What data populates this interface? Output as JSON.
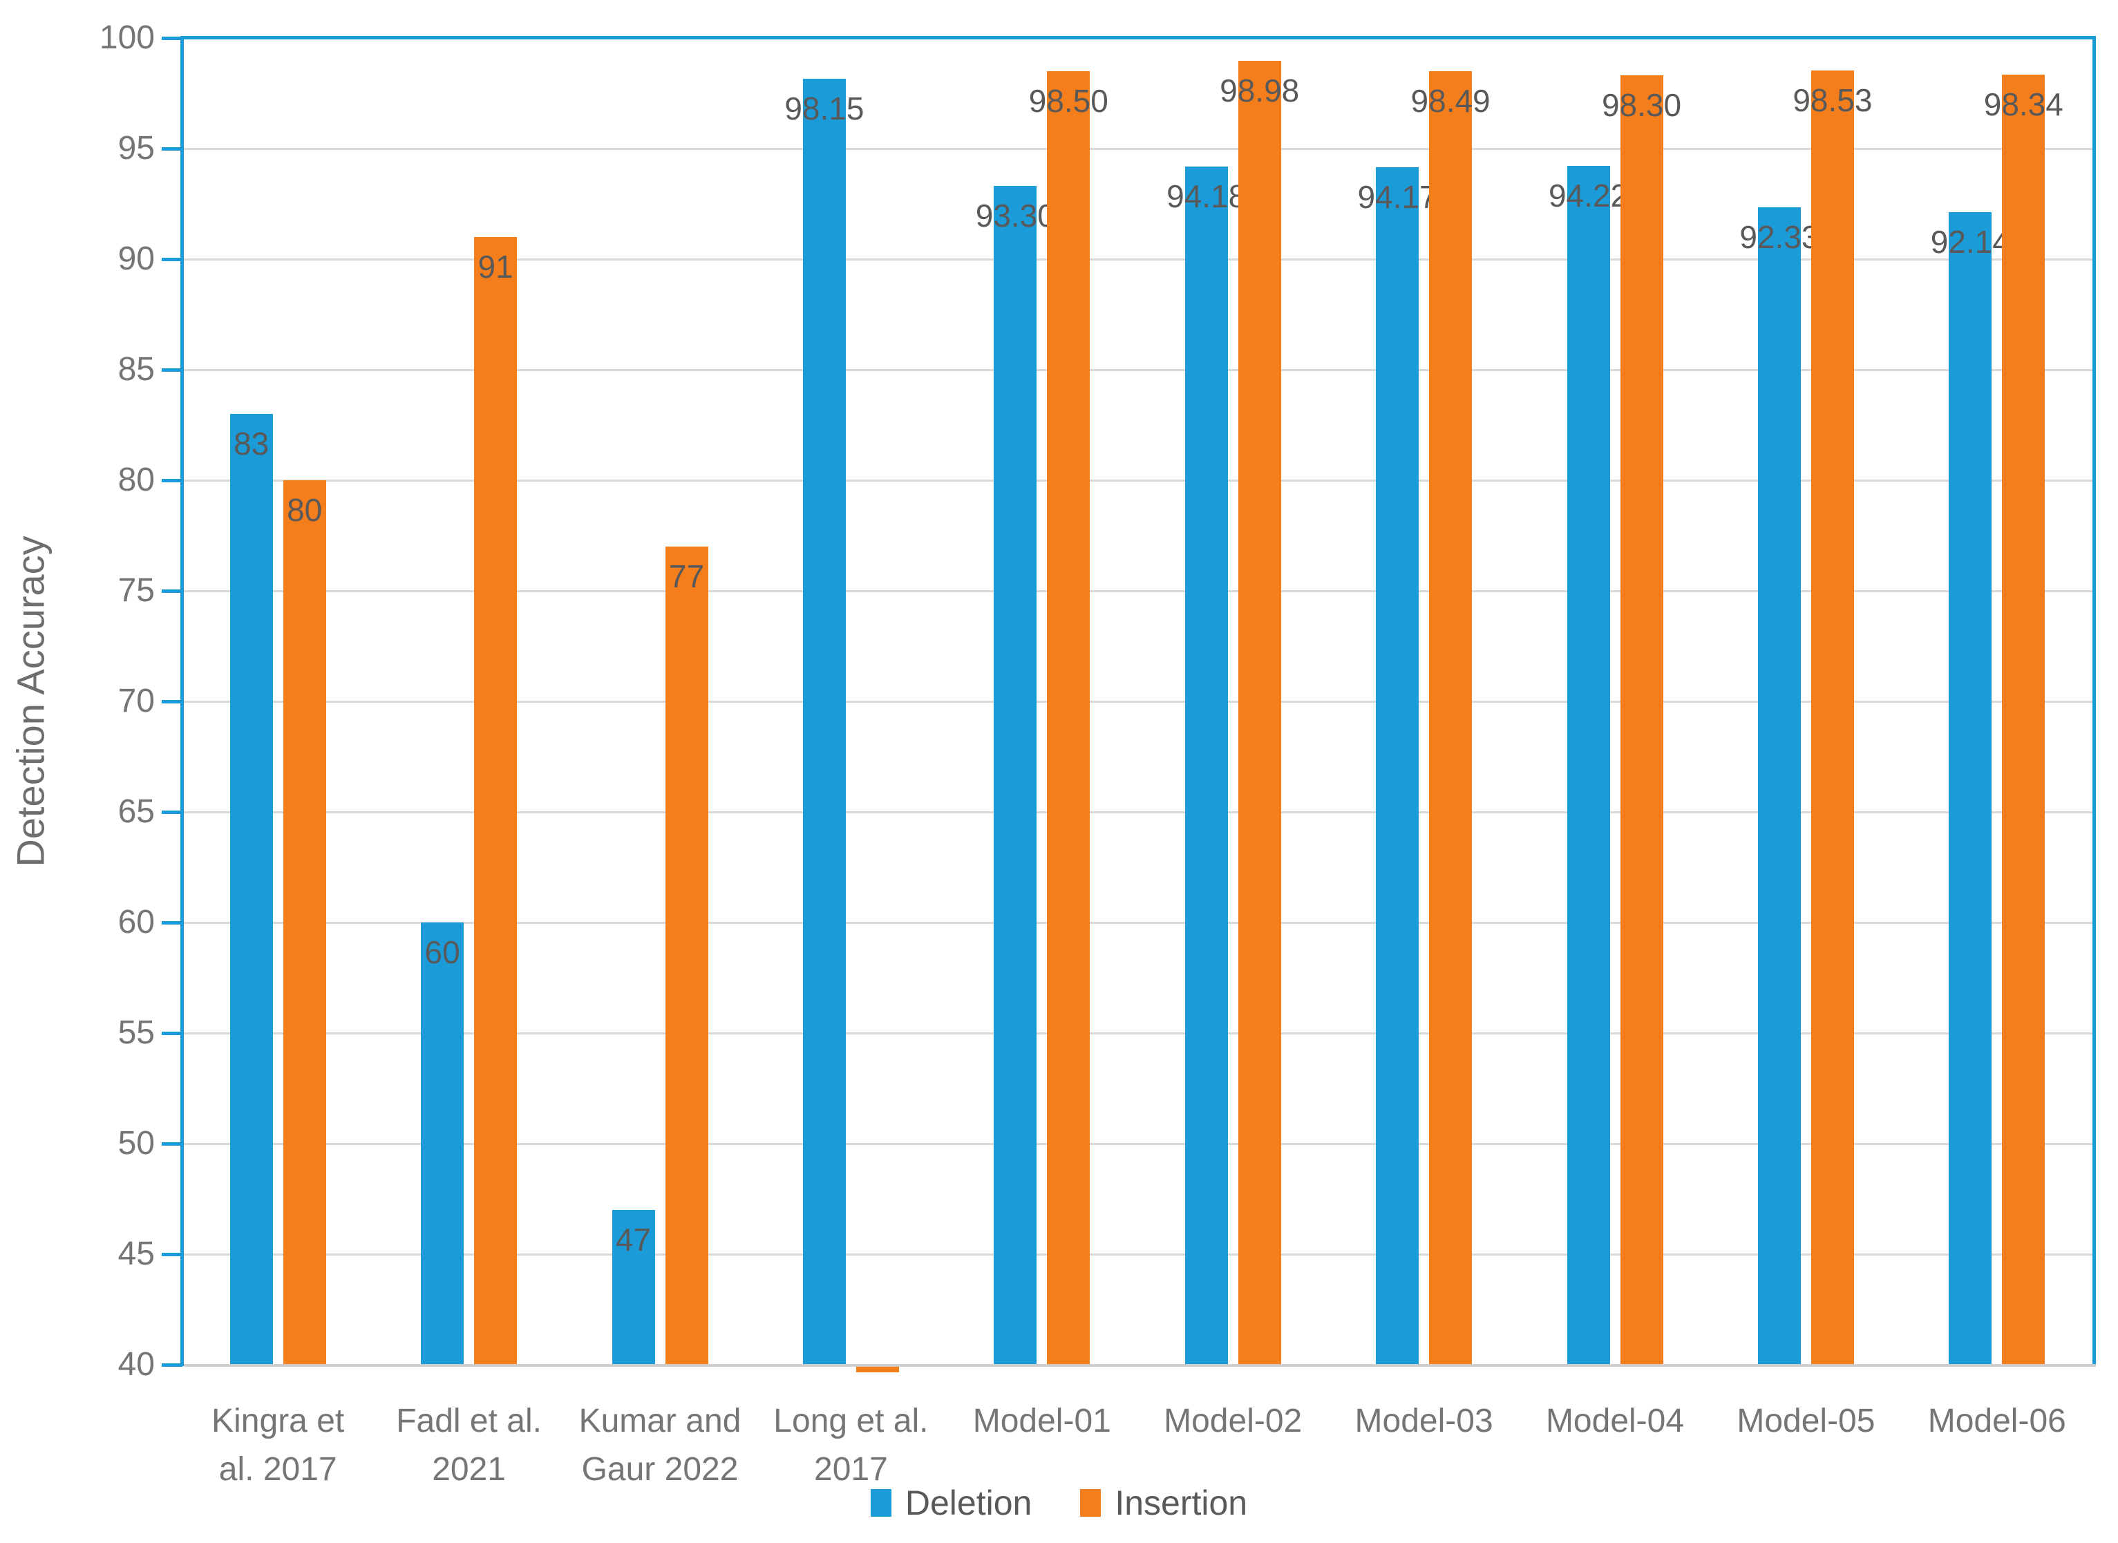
{
  "chart_data": {
    "type": "bar",
    "title": "",
    "xlabel": "",
    "ylabel": "Detection Accuracy",
    "ylim": [
      40,
      100
    ],
    "ytick_step": 5,
    "yticks": [
      100,
      95,
      90,
      85,
      80,
      75,
      70,
      65,
      60,
      55,
      50,
      45,
      40
    ],
    "grid": true,
    "legend_position": "bottom-center",
    "categories": [
      "Kingra et al. 2017",
      "Fadl et al. 2021",
      "Kumar and Gaur 2022",
      "Long et al. 2017",
      "Model-01",
      "Model-02",
      "Model-03",
      "Model-04",
      "Model-05",
      "Model-06"
    ],
    "category_label_lines": [
      [
        "Kingra et",
        "al. 2017"
      ],
      [
        "Fadl et al.",
        "2021"
      ],
      [
        "Kumar and",
        "Gaur 2022"
      ],
      [
        "Long et al.",
        "2017"
      ],
      [
        "Model-01"
      ],
      [
        "Model-02"
      ],
      [
        "Model-03"
      ],
      [
        "Model-04"
      ],
      [
        "Model-05"
      ],
      [
        "Model-06"
      ]
    ],
    "series": [
      {
        "name": "Deletion",
        "color": "#1b9bd8",
        "values": [
          83,
          60,
          47,
          98.15,
          93.3,
          94.18,
          94.17,
          94.22,
          92.33,
          92.14
        ],
        "labels": [
          "83",
          "60",
          "47",
          "98.15",
          "93.30",
          "94.18",
          "94.17",
          "94.22",
          "92.33",
          "92.14"
        ]
      },
      {
        "name": "Insertion",
        "color": "#f57e1c",
        "values": [
          80,
          91,
          77,
          null,
          98.5,
          98.98,
          98.49,
          98.3,
          98.53,
          98.34
        ],
        "labels": [
          "80",
          "91",
          "77",
          "",
          "98.50",
          "98.98",
          "98.49",
          "98.30",
          "98.53",
          "98.34"
        ],
        "clipped_below_axis_indices": [
          3
        ]
      }
    ]
  },
  "legend": {
    "items": [
      {
        "label": "Deletion",
        "color": "#1b9bd8"
      },
      {
        "label": "Insertion",
        "color": "#f57e1c"
      }
    ]
  },
  "colors": {
    "axis_border": "#1b9bd8",
    "baseline": "#cfcecd",
    "gridline": "#d9d9d9",
    "tick_label": "#757575",
    "data_label": "#595959",
    "category_label": "#757575",
    "y_title": "#6e6e6e"
  }
}
